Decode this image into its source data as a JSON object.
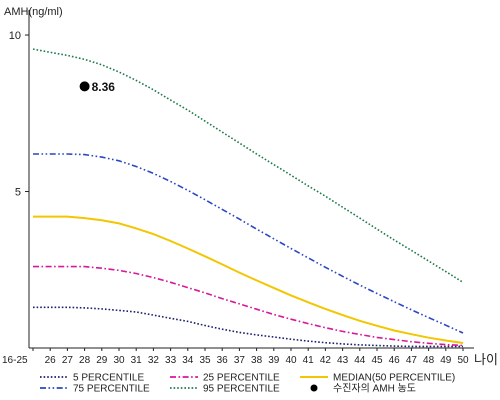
{
  "chart_data": {
    "type": "line",
    "ylabel": "AMH(ng/ml)",
    "xlabel": "나이",
    "x_tick_labels": [
      "16-25",
      "26",
      "27",
      "28",
      "29",
      "30",
      "31",
      "32",
      "33",
      "34",
      "35",
      "36",
      "37",
      "38",
      "39",
      "40",
      "41",
      "42",
      "43",
      "44",
      "45",
      "46",
      "47",
      "48",
      "49",
      "50"
    ],
    "y_ticks": [
      5,
      10
    ],
    "ylim": [
      0,
      10.8
    ],
    "grid": false,
    "legend_position": "bottom",
    "series": [
      {
        "name": "5 PERCENTILE",
        "color": "#1a1f6e",
        "dash": "dotted",
        "values": [
          1.3,
          1.3,
          1.3,
          1.28,
          1.25,
          1.2,
          1.15,
          1.05,
          0.95,
          0.85,
          0.72,
          0.6,
          0.5,
          0.42,
          0.35,
          0.28,
          0.22,
          0.17,
          0.13,
          0.1,
          0.08,
          0.06,
          0.05,
          0.05,
          0.05,
          0.05
        ]
      },
      {
        "name": "25 PERCENTILE",
        "color": "#d6189a",
        "dash": "dashdot",
        "values": [
          2.6,
          2.6,
          2.6,
          2.6,
          2.55,
          2.48,
          2.38,
          2.25,
          2.1,
          1.93,
          1.76,
          1.58,
          1.41,
          1.24,
          1.07,
          0.92,
          0.78,
          0.65,
          0.53,
          0.43,
          0.34,
          0.27,
          0.2,
          0.15,
          0.11,
          0.08
        ]
      },
      {
        "name": "MEDIAN(50 PERCENTILE)",
        "color": "#f2c600",
        "dash": "solid",
        "values": [
          4.2,
          4.2,
          4.2,
          4.15,
          4.08,
          3.98,
          3.82,
          3.64,
          3.42,
          3.18,
          2.93,
          2.67,
          2.41,
          2.16,
          1.92,
          1.68,
          1.46,
          1.25,
          1.05,
          0.87,
          0.71,
          0.56,
          0.44,
          0.33,
          0.24,
          0.16
        ]
      },
      {
        "name": "75 PERCENTILE",
        "color": "#2a47c4",
        "dash": "dashdotdot",
        "values": [
          6.2,
          6.2,
          6.2,
          6.18,
          6.1,
          5.98,
          5.8,
          5.58,
          5.32,
          5.04,
          4.74,
          4.43,
          4.12,
          3.8,
          3.49,
          3.18,
          2.88,
          2.58,
          2.29,
          2.01,
          1.74,
          1.48,
          1.22,
          0.97,
          0.73,
          0.48
        ]
      },
      {
        "name": "95 PERCENTILE",
        "color": "#1e7a4a",
        "dash": "dotted",
        "values": [
          9.55,
          9.45,
          9.35,
          9.22,
          9.05,
          8.82,
          8.55,
          8.25,
          7.92,
          7.6,
          7.25,
          6.9,
          6.55,
          6.2,
          5.86,
          5.52,
          5.18,
          4.85,
          4.5,
          4.15,
          3.8,
          3.45,
          3.12,
          2.78,
          2.44,
          2.1
        ]
      }
    ],
    "points": [
      {
        "name": "수진자의 AMH 농도",
        "x_index": 3,
        "y": 8.36,
        "label": "8.36",
        "color": "#000000"
      }
    ]
  },
  "legend_layout": [
    {
      "series": 0,
      "col": 0,
      "row": 0
    },
    {
      "series": 1,
      "col": 1,
      "row": 0
    },
    {
      "series": 2,
      "col": 2,
      "row": 0
    },
    {
      "series": 3,
      "col": 0,
      "row": 1
    },
    {
      "series": 4,
      "col": 1,
      "row": 1
    },
    {
      "point": 0,
      "col": 2,
      "row": 1
    }
  ]
}
